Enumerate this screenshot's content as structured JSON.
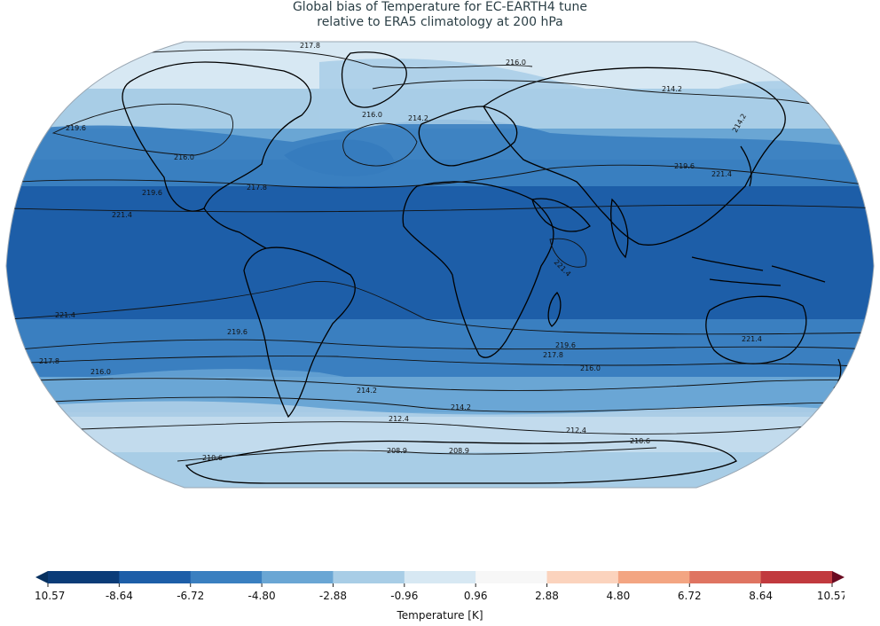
{
  "title": {
    "line1": "Global bias of Temperature for EC-EARTH4 tune",
    "line2": "relative to ERA5 climatology at 200 hPa"
  },
  "colors": {
    "ocean_outline": "#9aa7b3",
    "bias_levels": [
      {
        "range": [
          -10.57,
          -8.64
        ],
        "color": "#0b3c78"
      },
      {
        "range": [
          -8.64,
          -6.72
        ],
        "color": "#1d5ea8"
      },
      {
        "range": [
          -6.72,
          -4.8
        ],
        "color": "#3a7fc0"
      },
      {
        "range": [
          -4.8,
          -2.88
        ],
        "color": "#6aa6d4"
      },
      {
        "range": [
          -2.88,
          -0.96
        ],
        "color": "#a8cde6"
      },
      {
        "range": [
          -0.96,
          0.96
        ],
        "color": "#d7e8f3"
      },
      {
        "range": [
          0.96,
          2.88
        ],
        "color": "#f7f7f7"
      },
      {
        "range": [
          2.88,
          4.8
        ],
        "color": "#fbd3bd"
      },
      {
        "range": [
          4.8,
          6.72
        ],
        "color": "#f3a582"
      },
      {
        "range": [
          6.72,
          8.64
        ],
        "color": "#df7461"
      },
      {
        "range": [
          8.64,
          10.57
        ],
        "color": "#c13a3e"
      }
    ],
    "under_color": "#06305f",
    "over_color": "#6a0a20"
  },
  "contour_labels": [
    "217.8",
    "216.0",
    "214.2",
    "216.0",
    "214.2",
    "219.6",
    "216.0",
    "219.6",
    "221.4",
    "219.6",
    "217.8",
    "221.4",
    "221.4",
    "219.6",
    "217.8",
    "216.0",
    "219.6",
    "217.8",
    "216.0",
    "221.4",
    "214.2",
    "214.2",
    "212.4",
    "212.4",
    "210.6",
    "208.9",
    "208.9",
    "210.6",
    "221.4",
    "214.2"
  ],
  "colorbar": {
    "ticks": [
      "-10.57",
      "-8.64",
      "-6.72",
      "-4.80",
      "-2.88",
      "-0.96",
      "0.96",
      "2.88",
      "4.80",
      "6.72",
      "8.64",
      "10.57"
    ],
    "label": "Temperature [K]"
  }
}
